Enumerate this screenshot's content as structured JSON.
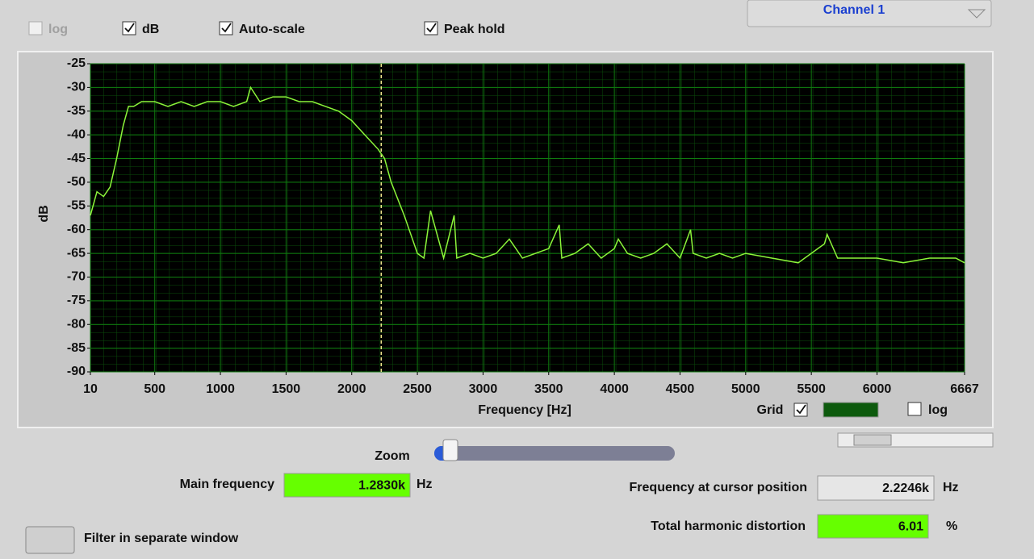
{
  "ui": {
    "checkboxes": [
      {
        "label": "log",
        "checked": false,
        "enabled": false
      },
      {
        "label": "dB",
        "checked": true,
        "enabled": true
      },
      {
        "label": "Auto-scale",
        "checked": true,
        "enabled": true
      },
      {
        "label": "Peak hold",
        "checked": true,
        "enabled": true
      }
    ],
    "channel": "Channel 1",
    "zoom_label": "Zoom",
    "readouts": [
      {
        "label": "Main frequency",
        "value": "1.2830k",
        "unit": "Hz",
        "color": "#66ff00"
      },
      {
        "label": "Frequency at cursor position",
        "value": {
          "value": 2224.6,
          "label": "2.2246k"
        },
        "unit": "Hz",
        "color": "#e6e6e6"
      },
      {
        "label": "Total harmonic distortion",
        "value": "6.01",
        "unit": "%",
        "color": "#66ff00"
      }
    ],
    "button": "Filter in separate window"
  },
  "chart_data": {
    "type": "line",
    "x_label": "Frequency [Hz]",
    "y_label": "dB",
    "x": [
      10,
      60,
      110,
      160,
      210,
      260,
      300,
      340,
      400,
      500,
      600,
      700,
      800,
      900,
      1000,
      1100,
      1200,
      1230,
      1300,
      1400,
      1500,
      1600,
      1700,
      1800,
      1900,
      2000,
      2100,
      2200,
      2250,
      2300,
      2400,
      2500,
      2550,
      2600,
      2700,
      2780,
      2800,
      2900,
      3000,
      3100,
      3200,
      3300,
      3400,
      3500,
      3580,
      3600,
      3700,
      3800,
      3900,
      4000,
      4030,
      4100,
      4200,
      4300,
      4400,
      4500,
      4580,
      4600,
      4700,
      4800,
      4900,
      5000,
      5200,
      5400,
      5600,
      5620,
      5700,
      5800,
      6000,
      6200,
      6400,
      6600,
      6667
    ],
    "values": [
      -57,
      -52,
      -53,
      -51,
      -45,
      -38,
      -34,
      -34,
      -33,
      -33,
      -34,
      -33,
      -34,
      -33,
      -33,
      -34,
      -33,
      -30,
      -33,
      -32,
      -32,
      -33,
      -33,
      -34,
      -35,
      -37,
      -40,
      -43,
      -45,
      -50,
      -57,
      -65,
      -66,
      -56,
      -66,
      -57,
      -66,
      -65,
      -66,
      -65,
      -62,
      -66,
      -65,
      -64,
      -59,
      -66,
      -65,
      -63,
      -66,
      -64,
      -62,
      -65,
      -66,
      -65,
      -63,
      -66,
      -60,
      -65,
      -66,
      -65,
      -66,
      -65,
      -66,
      -67,
      -63,
      -61,
      -66,
      -66,
      -66,
      -67,
      -66,
      -66,
      -67
    ],
    "color": "#8cf53a",
    "grid_color": "#0f7a0f",
    "xlim": [
      10,
      6667
    ],
    "xticks": [
      10,
      500,
      1000,
      1500,
      2000,
      2500,
      3000,
      3500,
      4000,
      4500,
      5000,
      5500,
      6000,
      6667
    ],
    "ylim": [
      -90,
      -25
    ],
    "yticks": [
      -25,
      -30,
      -35,
      -40,
      -45,
      -50,
      -55,
      -60,
      -65,
      -70,
      -75,
      -80,
      -85,
      -90
    ],
    "grid": true,
    "grid_label": "Grid",
    "log_label": "log",
    "log_scale": false
  }
}
